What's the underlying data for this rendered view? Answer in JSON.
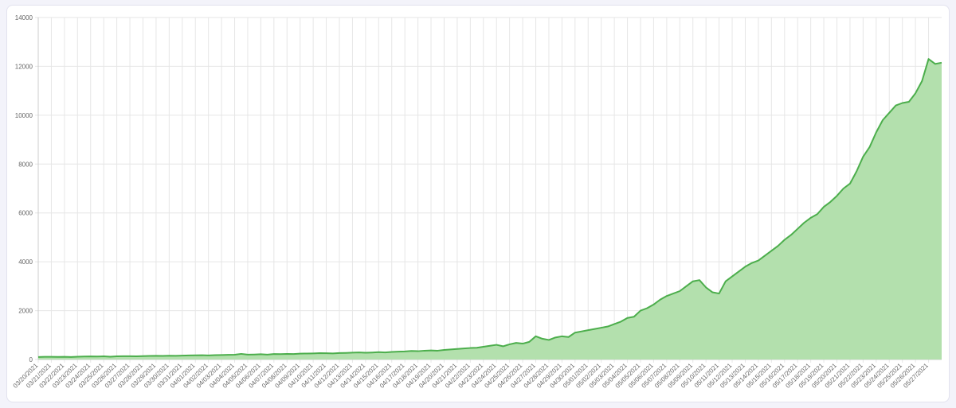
{
  "chart_data": {
    "type": "area",
    "categories": [
      "03/20/2021",
      null,
      "03/21/2021",
      null,
      "03/22/2021",
      null,
      "03/23/2021",
      null,
      "03/24/2021",
      null,
      "03/25/2021",
      null,
      "03/26/2021",
      null,
      "03/27/2021",
      null,
      "03/28/2021",
      null,
      "03/29/2021",
      null,
      "03/30/2021",
      null,
      "03/31/2021",
      null,
      "04/01/2021",
      null,
      "04/02/2021",
      null,
      "04/03/2021",
      null,
      "04/04/2021",
      null,
      "04/05/2021",
      null,
      "04/06/2021",
      null,
      "04/07/2021",
      null,
      "04/08/2021",
      null,
      "04/09/2021",
      null,
      "04/10/2021",
      null,
      "04/11/2021",
      null,
      "04/12/2021",
      null,
      "04/13/2021",
      null,
      "04/14/2021",
      null,
      "04/15/2021",
      null,
      "04/16/2021",
      null,
      "04/17/2021",
      null,
      "04/18/2021",
      null,
      "04/19/2021",
      null,
      "04/20/2021",
      null,
      "04/21/2021",
      null,
      "04/22/2021",
      null,
      "04/23/2021",
      null,
      "04/24/2021",
      null,
      "04/25/2021",
      null,
      "04/26/2021",
      null,
      "04/27/2021",
      null,
      "04/28/2021",
      null,
      "04/29/2021",
      null,
      "04/30/2021",
      null,
      "05/01/2021",
      null,
      "05/02/2021",
      null,
      "05/03/2021",
      null,
      "05/04/2021",
      null,
      "05/05/2021",
      null,
      "05/06/2021",
      null,
      "05/07/2021",
      null,
      "05/08/2021",
      null,
      "05/09/2021",
      null,
      "05/10/2021",
      null,
      "05/11/2021",
      null,
      "05/12/2021",
      null,
      "05/13/2021",
      null,
      "05/14/2021",
      null,
      "05/15/2021",
      null,
      "05/16/2021",
      null,
      "05/17/2021",
      null,
      "05/18/2021",
      null,
      "05/19/2021",
      null,
      "05/20/2021",
      null,
      "05/21/2021",
      null,
      "05/22/2021",
      null,
      "05/23/2021",
      null,
      "05/24/2021",
      null,
      "05/25/2021",
      null,
      "05/26/2021",
      null,
      "05/27/2021",
      null,
      null
    ],
    "values": [
      100,
      110,
      110,
      105,
      110,
      100,
      115,
      120,
      125,
      120,
      130,
      115,
      130,
      135,
      135,
      130,
      140,
      145,
      150,
      145,
      155,
      150,
      160,
      165,
      170,
      175,
      165,
      180,
      185,
      190,
      195,
      230,
      200,
      205,
      215,
      200,
      225,
      220,
      230,
      225,
      240,
      245,
      250,
      260,
      255,
      250,
      265,
      270,
      280,
      290,
      275,
      285,
      300,
      290,
      310,
      320,
      330,
      350,
      340,
      360,
      370,
      360,
      390,
      410,
      430,
      450,
      470,
      480,
      520,
      560,
      600,
      540,
      620,
      680,
      650,
      720,
      950,
      850,
      800,
      900,
      950,
      920,
      1100,
      1150,
      1200,
      1250,
      1300,
      1350,
      1450,
      1550,
      1700,
      1750,
      2000,
      2100,
      2250,
      2450,
      2600,
      2700,
      2800,
      3000,
      3200,
      3250,
      2950,
      2750,
      2700,
      3200,
      3400,
      3600,
      3800,
      3950,
      4050,
      4250,
      4450,
      4650,
      4900,
      5100,
      5350,
      5600,
      5800,
      5950,
      6250,
      6450,
      6700,
      7000,
      7200,
      7700,
      8300,
      8700,
      9300,
      9800,
      10100,
      10400,
      10500,
      10550,
      10900,
      11400,
      12300,
      12100,
      12150
    ],
    "color": "#4cae4c",
    "fill_color": "#b3e0ad",
    "ylim": [
      0,
      14000
    ],
    "yticks": [
      0,
      2000,
      4000,
      6000,
      8000,
      10000,
      12000,
      14000
    ],
    "grid": true
  }
}
